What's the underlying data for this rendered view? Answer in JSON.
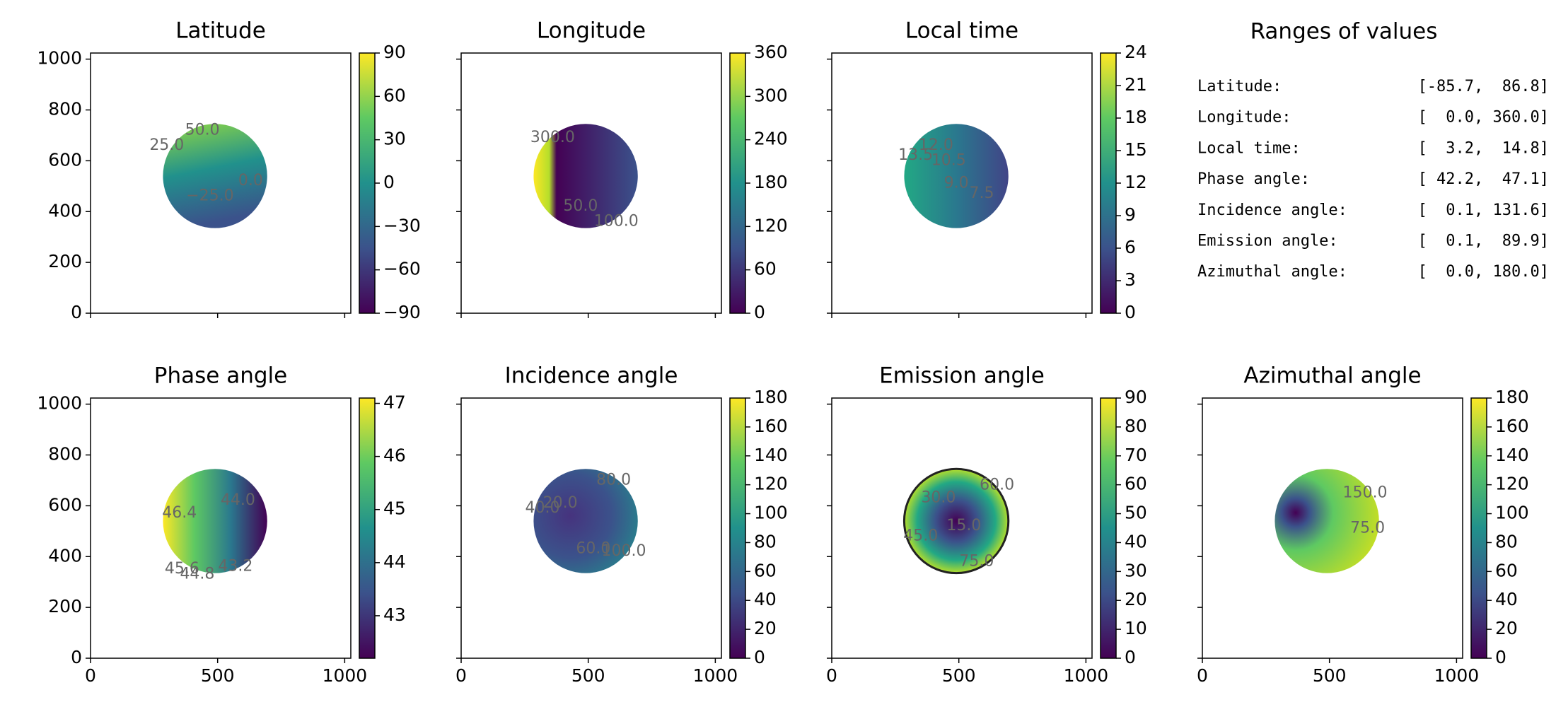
{
  "chart_data": [
    {
      "type": "image",
      "title": "Latitude",
      "xlim": [
        0,
        1024
      ],
      "ylim": [
        0,
        1024
      ],
      "xticks": [
        0,
        500,
        1000
      ],
      "yticks": [
        0,
        200,
        400,
        600,
        800,
        1000
      ],
      "show_xticklabels": false,
      "show_yticklabels": true,
      "clim": [
        -90,
        90
      ],
      "cticks": [
        {
          "value": -90,
          "label": "−90"
        },
        {
          "value": -60,
          "label": "−60"
        },
        {
          "value": -30,
          "label": "−30"
        },
        0,
        30,
        60,
        90
      ],
      "annotations": [
        "50.0",
        "25.0",
        "0.0",
        "−25.0"
      ]
    },
    {
      "type": "image",
      "title": "Longitude",
      "xlim": [
        0,
        1024
      ],
      "ylim": [
        0,
        1024
      ],
      "xticks": [
        0,
        500,
        1000
      ],
      "yticks": [
        0,
        200,
        400,
        600,
        800,
        1000
      ],
      "show_xticklabels": false,
      "show_yticklabels": false,
      "clim": [
        0,
        360
      ],
      "cticks": [
        0,
        60,
        120,
        180,
        240,
        300,
        360
      ],
      "annotations": [
        "300.0",
        "50.0",
        "100.0"
      ]
    },
    {
      "type": "image",
      "title": "Local time",
      "xlim": [
        0,
        1024
      ],
      "ylim": [
        0,
        1024
      ],
      "xticks": [
        0,
        500,
        1000
      ],
      "yticks": [
        0,
        200,
        400,
        600,
        800,
        1000
      ],
      "show_xticklabels": false,
      "show_yticklabels": false,
      "clim": [
        0,
        24
      ],
      "cticks": [
        0,
        3,
        6,
        9,
        12,
        15,
        18,
        21,
        24
      ],
      "annotations": [
        "13.5",
        "12.0",
        "10.5",
        "9.0",
        "7.5"
      ]
    },
    {
      "type": "image",
      "title": "Phase angle",
      "xlim": [
        0,
        1024
      ],
      "ylim": [
        0,
        1024
      ],
      "xticks": [
        0,
        500,
        1000
      ],
      "yticks": [
        0,
        200,
        400,
        600,
        800,
        1000
      ],
      "show_xticklabels": true,
      "show_yticklabels": true,
      "clim": [
        42.2,
        47.1
      ],
      "cticks": [
        43,
        44,
        45,
        46,
        47
      ],
      "annotations": [
        "46.4",
        "44.0",
        "45.6",
        "44.8",
        "43.2"
      ]
    },
    {
      "type": "image",
      "title": "Incidence angle",
      "xlim": [
        0,
        1024
      ],
      "ylim": [
        0,
        1024
      ],
      "xticks": [
        0,
        500,
        1000
      ],
      "yticks": [
        0,
        200,
        400,
        600,
        800,
        1000
      ],
      "show_xticklabels": true,
      "show_yticklabels": false,
      "clim": [
        0,
        180
      ],
      "cticks": [
        0,
        20,
        40,
        60,
        80,
        100,
        120,
        140,
        160,
        180
      ],
      "annotations": [
        "40.0",
        "20.0",
        "60.0",
        "80.0",
        "100.0"
      ]
    },
    {
      "type": "image",
      "title": "Emission angle",
      "xlim": [
        0,
        1024
      ],
      "ylim": [
        0,
        1024
      ],
      "xticks": [
        0,
        500,
        1000
      ],
      "yticks": [
        0,
        200,
        400,
        600,
        800,
        1000
      ],
      "show_xticklabels": true,
      "show_yticklabels": false,
      "clim": [
        0,
        90
      ],
      "cticks": [
        0,
        10,
        20,
        30,
        40,
        50,
        60,
        70,
        80,
        90
      ],
      "annotations": [
        "30.0",
        "45.0",
        "15.0",
        "75.0",
        "60.0"
      ]
    },
    {
      "type": "image",
      "title": "Azimuthal angle",
      "xlim": [
        0,
        1024
      ],
      "ylim": [
        0,
        1024
      ],
      "xticks": [
        0,
        500,
        1000
      ],
      "yticks": [
        0,
        200,
        400,
        600,
        800,
        1000
      ],
      "show_xticklabels": true,
      "show_yticklabels": false,
      "clim": [
        0,
        180
      ],
      "cticks": [
        0,
        20,
        40,
        60,
        80,
        100,
        120,
        140,
        160,
        180
      ],
      "annotations": [
        "150.0",
        "75.0"
      ]
    }
  ],
  "ranges": {
    "title": "Ranges of values",
    "rows": [
      {
        "label": "Latitude:",
        "value": "[-85.7,  86.8]"
      },
      {
        "label": "Longitude:",
        "value": "[  0.0, 360.0]"
      },
      {
        "label": "Local time:",
        "value": "[  3.2,  14.8]"
      },
      {
        "label": "Phase angle:",
        "value": "[ 42.2,  47.1]"
      },
      {
        "label": "Incidence angle:",
        "value": "[  0.1, 131.6]"
      },
      {
        "label": "Emission angle:",
        "value": "[  0.1,  89.9]"
      },
      {
        "label": "Azimuthal angle:",
        "value": "[  0.0, 180.0]"
      }
    ]
  }
}
